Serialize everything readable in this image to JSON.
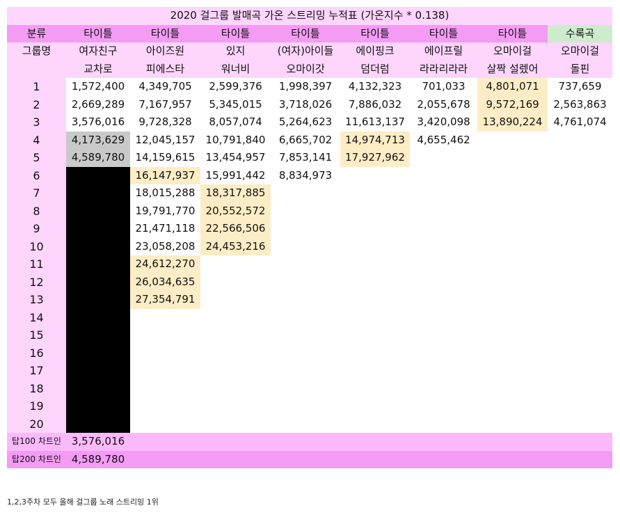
{
  "title": "2020 걸그룹 발매곡 가온 스트리밍 누적표 (가온지수 * 0.138)",
  "header_row": {
    "label": "분류",
    "categories": [
      "타이틀",
      "타이틀",
      "타이틀",
      "타이틀",
      "타이틀",
      "타이틀",
      "타이틀",
      "수록곡"
    ]
  },
  "group_row": {
    "label": "그룹명",
    "groups": [
      "여자친구",
      "아이즈원",
      "있지",
      "(여자)아이들",
      "에이핑크",
      "에이프릴",
      "오마이걸",
      "오마이걸"
    ]
  },
  "song_row": {
    "songs": [
      "교차로",
      "피에스타",
      "워너비",
      "오마이갓",
      "덤더럼",
      "라라리라라",
      "살짝 설렜어",
      "돌핀"
    ]
  },
  "ranks": [
    "1",
    "2",
    "3",
    "4",
    "5",
    "6",
    "7",
    "8",
    "9",
    "10",
    "11",
    "12",
    "13",
    "14",
    "15",
    "16",
    "17",
    "18",
    "19",
    "20"
  ],
  "columns": [
    {
      "values": [
        "1,572,400",
        "2,669,289",
        "3,576,016",
        "4,173,629",
        "4,589,780"
      ],
      "gray_rows": [
        3,
        4
      ],
      "yellow_rows": [],
      "black_from": 5
    },
    {
      "values": [
        "4,349,705",
        "7,167,957",
        "9,728,328",
        "12,045,157",
        "14,159,615",
        "16,147,937",
        "18,015,288",
        "19,791,770",
        "21,471,118",
        "23,058,208",
        "24,612,270",
        "26,034,635",
        "27,354,791"
      ],
      "gray_rows": [],
      "yellow_rows": [
        5,
        10,
        11,
        12
      ]
    },
    {
      "values": [
        "2,599,376",
        "5,345,015",
        "8,057,074",
        "10,791,840",
        "13,454,957",
        "15,991,442",
        "18,317,885",
        "20,552,572",
        "22,566,506",
        "24,453,216"
      ],
      "gray_rows": [],
      "yellow_rows": [
        6,
        7,
        8,
        9
      ]
    },
    {
      "values": [
        "1,998,397",
        "3,718,026",
        "5,264,623",
        "6,665,702",
        "7,853,141",
        "8,834,973"
      ],
      "gray_rows": [],
      "yellow_rows": []
    },
    {
      "values": [
        "4,132,323",
        "7,886,032",
        "11,613,137",
        "14,974,713",
        "17,927,962"
      ],
      "gray_rows": [],
      "yellow_rows": [
        3,
        4
      ]
    },
    {
      "values": [
        "701,033",
        "2,055,678",
        "3,420,098",
        "4,655,462"
      ],
      "gray_rows": [],
      "yellow_rows": []
    },
    {
      "values": [
        "4,801,071",
        "9,572,169",
        "13,890,224"
      ],
      "gray_rows": [],
      "yellow_rows": [
        0,
        1,
        2
      ]
    },
    {
      "values": [
        "737,659",
        "2,563,863",
        "4,761,074"
      ],
      "gray_rows": [],
      "yellow_rows": []
    }
  ],
  "top100": {
    "label": "탑100 차트인",
    "value": "3,576,016"
  },
  "top200": {
    "label": "탑200 차트인",
    "value": "4,589,780"
  },
  "footnote": "1,2,3주차 모두 올해 걸그룹 노래 스트리밍 1위",
  "colors": {
    "light_pink": "#fdd5fd",
    "header_pink": "#f49bf4",
    "summary_pink": "#fbb9fb",
    "green": "#cdeccd",
    "yellow": "#fdedc6",
    "gray": "#c9c9c9",
    "black": "#000000"
  }
}
